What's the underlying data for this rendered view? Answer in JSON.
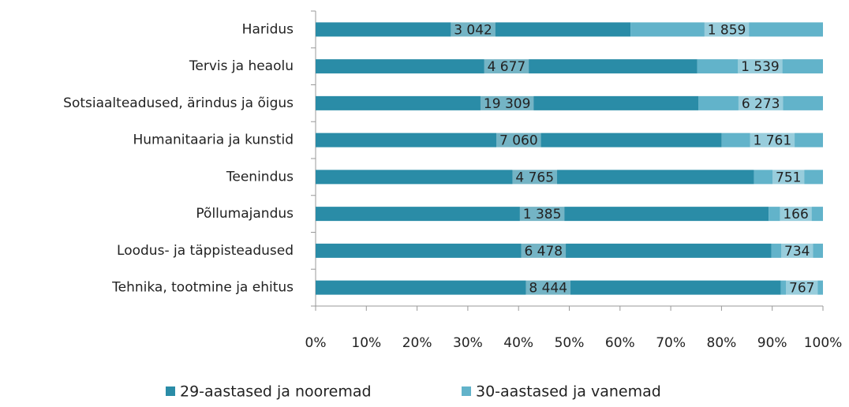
{
  "chart_data": {
    "type": "bar",
    "orientation": "horizontal",
    "stacking": "percent",
    "categories": [
      "Haridus",
      "Tervis ja heaolu",
      "Sotsiaalteadused, ärindus ja õigus",
      "Humanitaaria ja kunstid",
      "Teenindus",
      "Põllumajandus",
      "Loodus- ja täppisteadused",
      "Tehnika, tootmine ja ehitus"
    ],
    "series": [
      {
        "name": "29-aastased ja nooremad",
        "color": "#2a8ca7",
        "values": [
          3042,
          4677,
          19309,
          7060,
          4765,
          1385,
          6478,
          8444
        ],
        "value_labels": [
          "3 042",
          "4 677",
          "19 309",
          "7 060",
          "4 765",
          "1 385",
          "6 478",
          "8 444"
        ]
      },
      {
        "name": "30-aastased ja vanemad",
        "color": "#62b3ca",
        "values": [
          1859,
          1539,
          6273,
          1761,
          751,
          166,
          734,
          767
        ],
        "value_labels": [
          "1 859",
          "1 539",
          "6 273",
          "1 761",
          "751",
          "166",
          "734",
          "767"
        ]
      }
    ],
    "xlim": [
      0,
      100
    ],
    "xticks": [
      {
        "value": 0,
        "label": "0%"
      },
      {
        "value": 10,
        "label": "10%"
      },
      {
        "value": 20,
        "label": "20%"
      },
      {
        "value": 30,
        "label": "30%"
      },
      {
        "value": 40,
        "label": "40%"
      },
      {
        "value": 50,
        "label": "50%"
      },
      {
        "value": 60,
        "label": "60%"
      },
      {
        "value": 70,
        "label": "70%"
      },
      {
        "value": 80,
        "label": "80%"
      },
      {
        "value": 90,
        "label": "90%"
      },
      {
        "value": 100,
        "label": "100%"
      }
    ],
    "grid": false,
    "legend": "bottom"
  }
}
